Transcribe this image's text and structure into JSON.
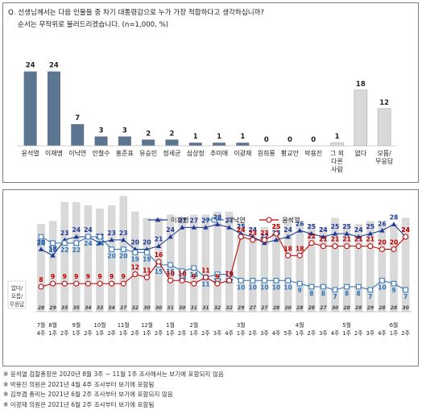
{
  "question": {
    "title": "Q. 선생님께서는 다음 인물들 중 차기 대통령감으로 누가 가장 적합하다고 생각하십니까?",
    "note": "순서는 무작위로 불러드리겠습니다. (n=1,000, %)"
  },
  "colors": {
    "bar_candidate": "#5c7591",
    "bar_other": "#d9d9d9",
    "lee_jaemyung": "#1f3a93",
    "lee_nakyon": "#2e75b6",
    "yoon_seokyeol": "#c00000",
    "bar_trend": "#d9d9d9"
  },
  "chart_data": [
    {
      "type": "bar",
      "categories": [
        "윤석열",
        "이재명",
        "이낙연",
        "안철수",
        "홍준표",
        "유승민",
        "정세균",
        "심상정",
        "추미애",
        "이광재",
        "원희룡",
        "황교안",
        "박용진",
        "그 외\n다른\n사람",
        "없다",
        "모름/\n무응답"
      ],
      "values": [
        24,
        24,
        7,
        3,
        3,
        2,
        2,
        1,
        1,
        1,
        0,
        0,
        0,
        1,
        18,
        12
      ],
      "ylim": [
        0,
        26
      ]
    },
    {
      "type": "line",
      "x_labels": [
        {
          "month": "7월",
          "week": "4주"
        },
        {
          "month": "8월",
          "week": "1주"
        },
        {
          "month": "",
          "week": "2주"
        },
        {
          "month": "9월",
          "week": "1주"
        },
        {
          "month": "",
          "week": "2주"
        },
        {
          "month": "10월",
          "week": "1주"
        },
        {
          "month": "",
          "week": "2주"
        },
        {
          "month": "11월",
          "week": "1주"
        },
        {
          "month": "",
          "week": "2주"
        },
        {
          "month": "12월",
          "week": "1주"
        },
        {
          "month": "",
          "week": "2주"
        },
        {
          "month": "1월",
          "week": "1주"
        },
        {
          "month": "",
          "week": "2주"
        },
        {
          "month": "2월",
          "week": "1주"
        },
        {
          "month": "",
          "week": "2주"
        },
        {
          "month": "",
          "week": "3주"
        },
        {
          "month": "",
          "week": "4주"
        },
        {
          "month": "3월",
          "week": "1주"
        },
        {
          "month": "",
          "week": "2주"
        },
        {
          "month": "",
          "week": "3주"
        },
        {
          "month": "",
          "week": "4주"
        },
        {
          "month": "",
          "week": "5주"
        },
        {
          "month": "4월",
          "week": "1주"
        },
        {
          "month": "",
          "week": "2주"
        },
        {
          "month": "",
          "week": "3주"
        },
        {
          "month": "",
          "week": "4주"
        },
        {
          "month": "5월",
          "week": "1주"
        },
        {
          "month": "",
          "week": "2주"
        },
        {
          "month": "",
          "week": "3주"
        },
        {
          "month": "",
          "week": "4주"
        },
        {
          "month": "6월",
          "week": "1주"
        },
        {
          "month": "",
          "week": "2주"
        }
      ],
      "bar_label": "없다/\n모름/\n무응답",
      "bars": [
        28,
        29,
        35,
        35,
        34,
        33,
        34,
        37,
        32,
        30,
        30,
        31,
        30,
        31,
        31,
        32,
        32,
        29,
        27,
        27,
        28,
        30,
        28,
        28,
        27,
        30,
        28,
        28,
        29,
        28,
        28,
        30
      ],
      "series": [
        {
          "name": "이재명",
          "values": [
            20,
            18,
            23,
            24,
            24,
            22,
            23,
            23,
            20,
            20,
            21,
            24,
            27,
            27,
            27,
            28,
            27,
            25,
            24,
            22,
            23,
            24,
            26,
            25,
            24,
            25,
            25,
            24,
            25,
            26,
            28,
            24
          ]
        },
        {
          "name": "이낙연",
          "values": [
            24,
            22,
            22,
            22,
            24,
            24,
            20,
            20,
            19,
            19,
            15,
            15,
            13,
            14,
            11,
            12,
            12,
            10,
            10,
            10,
            10,
            10,
            9,
            8,
            8,
            7,
            8,
            8,
            7,
            10,
            9,
            7
          ]
        },
        {
          "name": "윤석열",
          "values": [
            8,
            9,
            9,
            9,
            9,
            9,
            9,
            9,
            12,
            11,
            16,
            10,
            10,
            9,
            11,
            9,
            10,
            24,
            23,
            23,
            25,
            18,
            18,
            22,
            21,
            21,
            21,
            21,
            21,
            20,
            20,
            24
          ]
        }
      ],
      "ylim": [
        0,
        40
      ]
    }
  ],
  "footnotes": [
    "※ 윤석열 검찰총장은 2020년 8월 3주 ~ 11월 1주 조사에서는 보기에 포함되지 않음",
    "※ 박용진 의원은 2021년 4월 4주 조사부터 보기에 포함됨",
    "※ 김부겸 총리는 2021년 6월 2주 조사부터 보기에 포함되지 않음",
    "※ 이광재 의원은 2021년 6월 2주 조사부터 보기에 포함됨"
  ]
}
